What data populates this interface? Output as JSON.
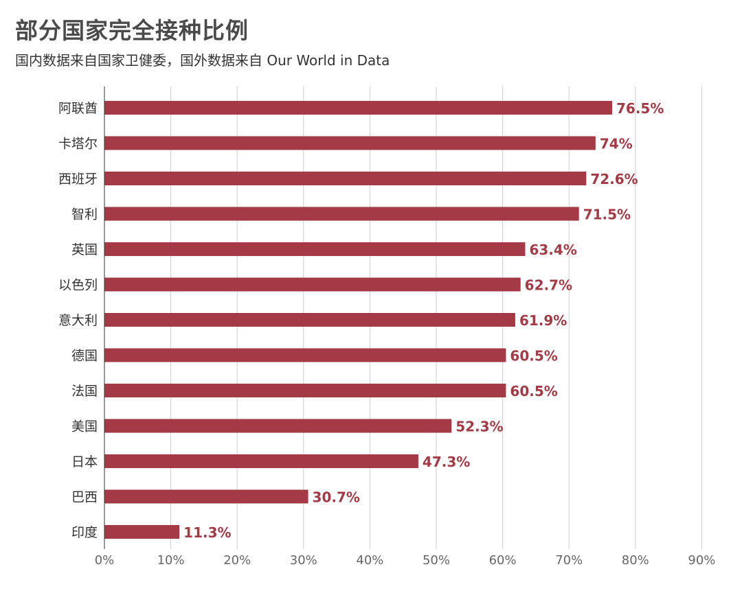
{
  "header": {
    "title": "部分国家完全接种比例",
    "subtitle": "国内数据来自国家卫健委，国外数据来自 Our World in Data"
  },
  "colors": {
    "bar": "#a33a46",
    "value_label": "#a33a46",
    "grid": "#cccccc",
    "axis": "#333333"
  },
  "chart_data": {
    "type": "bar",
    "orientation": "horizontal",
    "title": "部分国家完全接种比例",
    "subtitle": "国内数据来自国家卫健委，国外数据来自 Our World in Data",
    "xlabel": "",
    "ylabel": "",
    "categories": [
      "阿联酋",
      "卡塔尔",
      "西班牙",
      "智利",
      "英国",
      "以色列",
      "意大利",
      "德国",
      "法国",
      "美国",
      "日本",
      "巴西",
      "印度"
    ],
    "values": [
      76.5,
      74,
      72.6,
      71.5,
      63.4,
      62.7,
      61.9,
      60.5,
      60.5,
      52.3,
      47.3,
      30.7,
      11.3
    ],
    "value_labels": [
      "76.5%",
      "74%",
      "72.6%",
      "71.5%",
      "63.4%",
      "62.7%",
      "61.9%",
      "60.5%",
      "60.5%",
      "52.3%",
      "47.3%",
      "30.7%",
      "11.3%"
    ],
    "xlim": [
      0,
      90
    ],
    "xticks": [
      0,
      10,
      20,
      30,
      40,
      50,
      60,
      70,
      80,
      90
    ],
    "xtick_labels": [
      "0%",
      "10%",
      "20%",
      "30%",
      "40%",
      "50%",
      "60%",
      "70%",
      "80%",
      "90%"
    ],
    "grid": true,
    "legend": "none"
  }
}
